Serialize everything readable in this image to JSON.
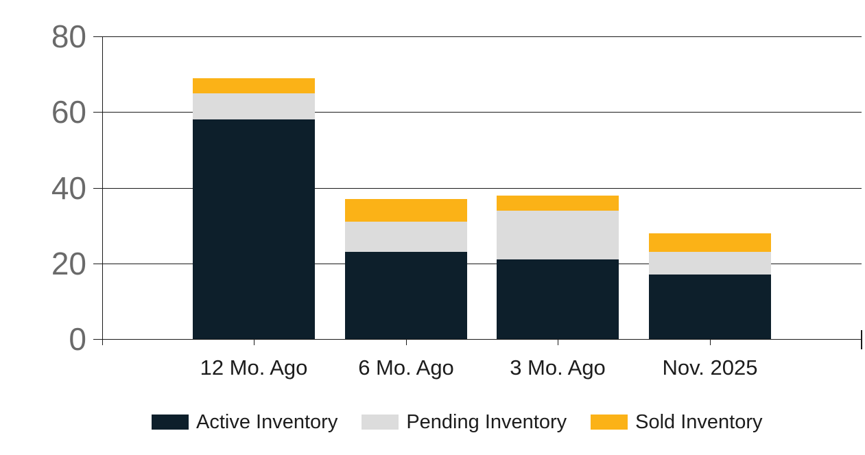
{
  "chart_data": {
    "type": "bar",
    "stacked": true,
    "title": "",
    "xlabel": "",
    "ylabel": "",
    "categories": [
      "12 Mo. Ago",
      "6 Mo. Ago",
      "3 Mo. Ago",
      "Nov. 2025"
    ],
    "series": [
      {
        "name": "Active Inventory",
        "color": "#0d1f2b",
        "values": [
          58,
          23,
          21,
          17
        ]
      },
      {
        "name": "Pending Inventory",
        "color": "#dcdcdc",
        "values": [
          7,
          8,
          13,
          6
        ]
      },
      {
        "name": "Sold Inventory",
        "color": "#fbb217",
        "values": [
          4,
          6,
          4,
          5
        ]
      }
    ],
    "stack_totals": [
      69,
      37,
      38,
      28
    ],
    "ylim": [
      0,
      80
    ],
    "yticks": [
      0,
      20,
      40,
      60,
      80
    ],
    "grid": true,
    "legend_position": "bottom"
  },
  "colors": {
    "background": "#ffffff",
    "axis_line": "#1a1a1a",
    "gridline": "#1a1a1a",
    "y_tick_label": "#6a6a6a",
    "x_tick_label": "#1c1c1c",
    "legend_text": "#1c1c1c"
  }
}
